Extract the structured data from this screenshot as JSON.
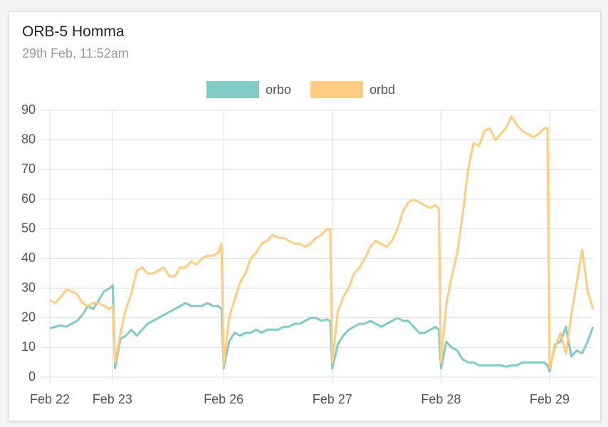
{
  "chart_data": {
    "type": "line",
    "title": "ORB-5 Homma",
    "subtitle": "29th Feb, 11:52am",
    "x": [
      0,
      1,
      2,
      3,
      4,
      5,
      6,
      7,
      8,
      9,
      10,
      11,
      11.6,
      12,
      13,
      14,
      15,
      16,
      17,
      18,
      19,
      20,
      21,
      22,
      23,
      24,
      25,
      26,
      27,
      28,
      29,
      30,
      31,
      31.6,
      32,
      33,
      34,
      35,
      36,
      37,
      38,
      39,
      40,
      41,
      42,
      43,
      44,
      45,
      46,
      47,
      48,
      49,
      50,
      51,
      51.6,
      52,
      53,
      54,
      55,
      56,
      57,
      58,
      59,
      60,
      61,
      62,
      63,
      64,
      65,
      66,
      67,
      68,
      69,
      70,
      71,
      71.6,
      72,
      73,
      74,
      75,
      76,
      77,
      78,
      79,
      80,
      81,
      82,
      83,
      84,
      85,
      86,
      87,
      88,
      89,
      90,
      91,
      91.6,
      92,
      93,
      94,
      95,
      96,
      97,
      98,
      99,
      100
    ],
    "series": [
      {
        "name": "orbo",
        "color": "#80cbc4",
        "values": [
          16.5,
          17,
          17.5,
          17,
          18,
          19,
          21,
          24,
          23,
          26,
          29,
          30,
          31,
          3,
          13,
          14,
          16,
          14,
          16,
          18,
          19,
          20,
          21,
          22,
          23,
          24,
          25,
          24,
          24,
          24,
          25,
          24,
          24,
          23,
          3,
          12,
          15,
          14,
          15,
          15,
          16,
          15,
          16,
          16,
          16,
          17,
          17,
          18,
          18,
          19,
          20,
          20,
          19,
          19.5,
          19,
          3,
          11,
          14,
          16,
          17,
          18,
          18,
          19,
          18,
          17,
          18,
          19,
          20,
          19,
          19,
          17,
          15,
          15,
          16,
          17,
          16,
          3,
          12,
          10,
          9,
          6,
          5,
          5,
          4,
          4,
          4,
          4,
          4,
          3.5,
          4,
          4,
          5,
          5,
          5,
          5,
          5,
          4,
          2,
          11,
          12,
          17,
          7,
          9,
          8,
          12,
          17
        ]
      },
      {
        "name": "orbd",
        "color": "#ffcc80",
        "values": [
          26,
          25,
          27,
          29.5,
          29,
          28,
          25,
          24,
          25,
          25,
          24,
          23,
          24,
          5,
          15,
          23,
          28,
          36,
          37,
          35,
          35,
          36,
          37,
          34,
          34,
          37,
          37,
          39,
          38,
          40,
          41,
          41,
          42,
          45,
          4,
          20,
          26,
          32,
          35,
          40,
          42,
          45,
          46,
          48,
          47,
          47,
          46,
          45,
          45,
          44,
          45,
          47,
          48,
          50,
          50,
          5,
          22,
          27,
          30,
          35,
          37,
          40,
          44,
          46,
          45,
          44,
          46,
          50,
          56,
          59,
          60,
          59,
          58,
          57,
          58,
          57,
          5,
          25,
          34,
          42,
          55,
          70,
          79,
          78,
          83,
          84,
          80,
          82,
          84,
          88,
          85,
          83,
          82,
          81,
          82,
          84,
          84,
          3,
          10,
          15,
          8,
          21,
          32,
          43,
          29,
          23
        ]
      }
    ],
    "xlim": [
      0,
      100
    ],
    "xticks": [
      {
        "value": 0,
        "label": "Feb 22"
      },
      {
        "value": 11.5,
        "label": "Feb 23"
      },
      {
        "value": 32,
        "label": "Feb 26"
      },
      {
        "value": 52,
        "label": "Feb 27"
      },
      {
        "value": 72,
        "label": "Feb 28"
      },
      {
        "value": 92,
        "label": "Feb 29"
      }
    ],
    "ylim": [
      0,
      90
    ],
    "yticks": [
      0,
      10,
      20,
      30,
      40,
      50,
      60,
      70,
      80,
      90
    ],
    "grid": true
  }
}
